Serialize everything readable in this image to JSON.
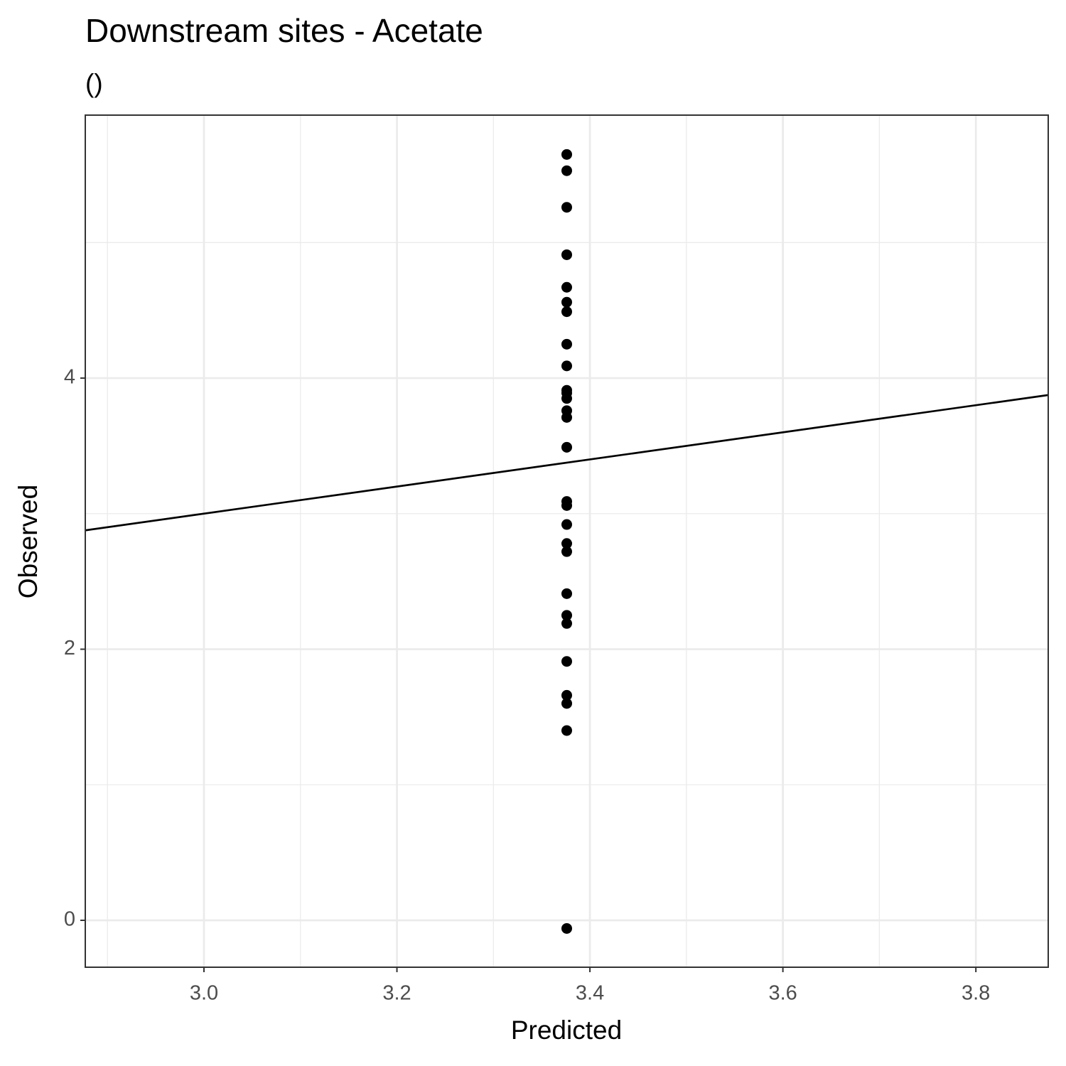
{
  "chart_data": {
    "type": "scatter",
    "title": "Downstream sites - Acetate",
    "subtitle": "()",
    "x_label": "Predicted",
    "y_label": "Observed",
    "x": [
      3.376,
      3.376,
      3.376,
      3.376,
      3.376,
      3.376,
      3.376,
      3.376,
      3.376,
      3.376,
      3.376,
      3.376,
      3.376,
      3.376,
      3.376,
      3.376,
      3.376,
      3.376,
      3.376,
      3.376,
      3.376,
      3.376,
      3.376,
      3.376,
      3.376,
      3.376,
      3.376,
      3.376
    ],
    "y": [
      5.65,
      5.53,
      5.26,
      4.91,
      4.67,
      4.56,
      4.49,
      4.25,
      4.09,
      3.91,
      3.89,
      3.85,
      3.76,
      3.71,
      3.49,
      3.09,
      3.06,
      2.92,
      2.78,
      2.72,
      2.41,
      2.25,
      2.19,
      1.91,
      1.66,
      1.6,
      1.4,
      -0.06
    ],
    "color": "#000000",
    "abline": {
      "intercept": 0,
      "slope": 1
    },
    "xlim": [
      2.877,
      3.875
    ],
    "ylim": [
      -0.346,
      5.94
    ],
    "xticks": [
      {
        "value": 3.0,
        "label": "3.0"
      },
      3.2,
      3.4,
      3.6,
      3.8
    ],
    "yticks": [
      0,
      2,
      4
    ],
    "xminor": [
      2.9,
      3.1,
      3.3,
      3.5,
      3.7
    ],
    "yminor": [
      1,
      3,
      5
    ],
    "grid": true
  }
}
